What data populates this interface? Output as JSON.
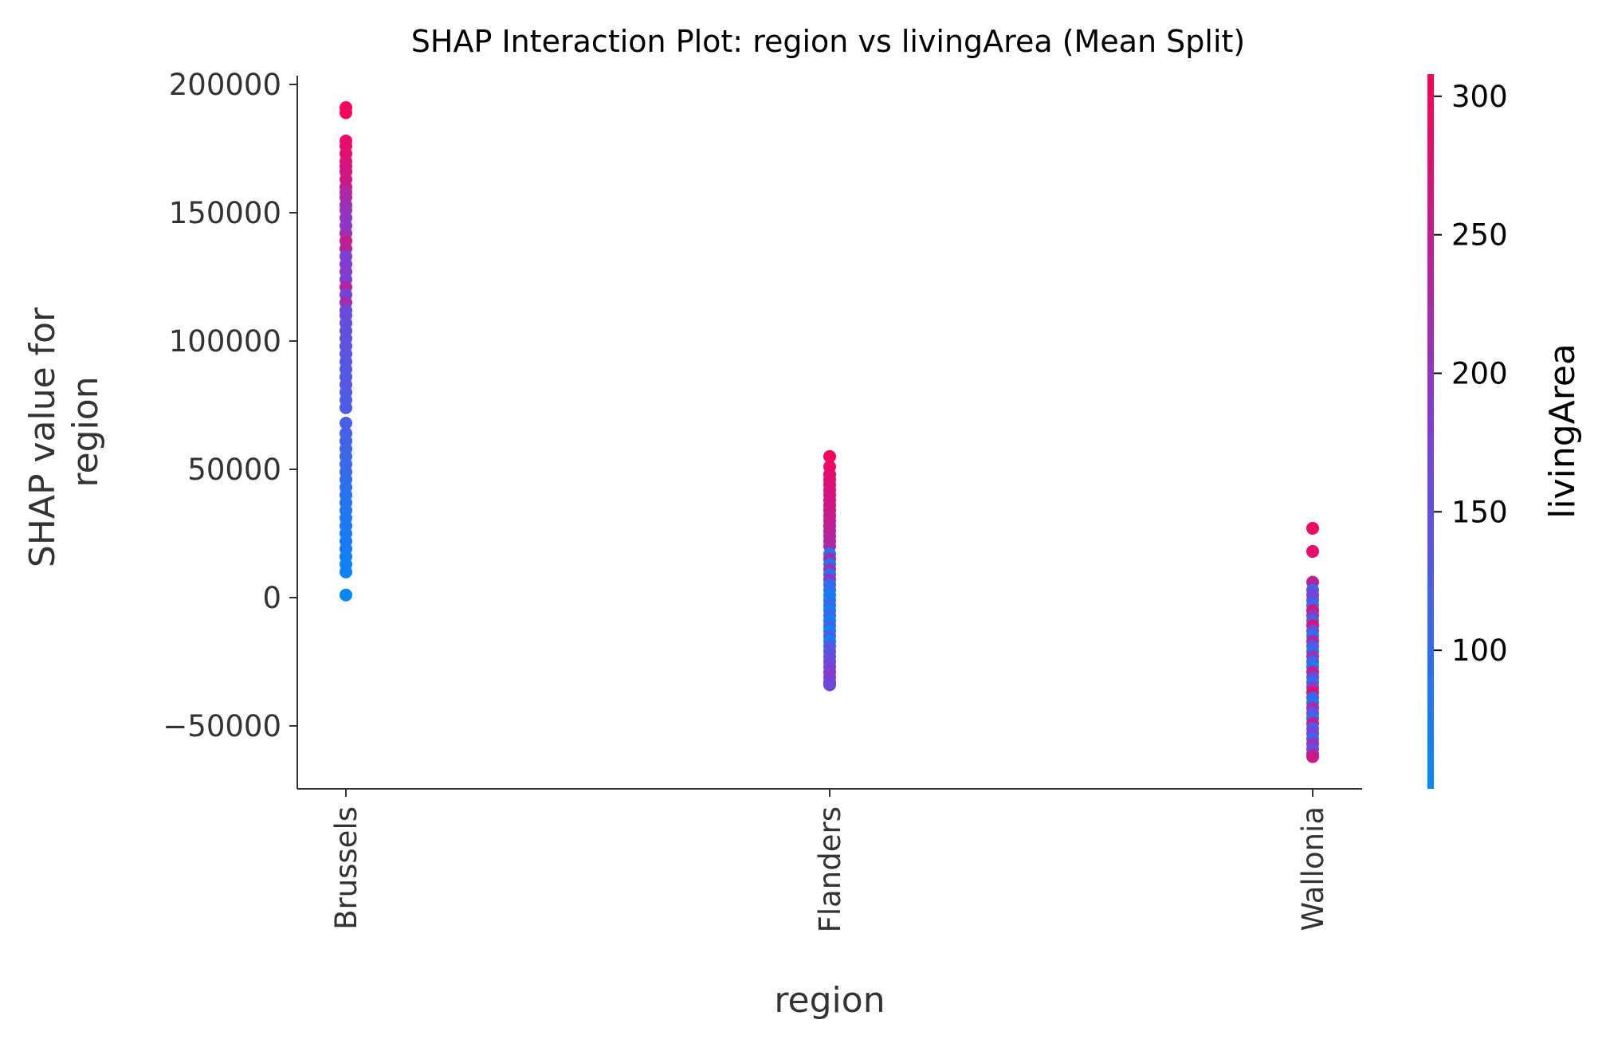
{
  "chart_data": {
    "type": "scatter",
    "title": "SHAP Interaction Plot: region vs livingArea (Mean Split)",
    "xlabel": "region",
    "ylabel": [
      "SHAP value for",
      "region"
    ],
    "categories": [
      "Brussels",
      "Flanders",
      "Wallonia"
    ],
    "y_ticks": [
      200000,
      150000,
      100000,
      50000,
      0,
      -50000
    ],
    "y_tick_labels": [
      "200000",
      "150000",
      "100000",
      "50000",
      "0",
      "−50000"
    ],
    "ylim": [
      -75000,
      205000
    ],
    "colorbar": {
      "label": "livingArea",
      "range": [
        50,
        308
      ],
      "ticks": [
        100,
        150,
        200,
        250,
        300
      ],
      "tick_labels": [
        "100",
        "150",
        "200",
        "250",
        "300"
      ],
      "color_low": "#008afb",
      "color_mid": "#7d3fd8",
      "color_high": "#ff0052"
    },
    "series": [
      {
        "category": "Brussels",
        "points": [
          [
            191000,
            300
          ],
          [
            189000,
            295
          ],
          [
            178000,
            290
          ],
          [
            176000,
            285
          ],
          [
            173000,
            280
          ],
          [
            170000,
            275
          ],
          [
            168000,
            270
          ],
          [
            166000,
            265
          ],
          [
            163000,
            260
          ],
          [
            160000,
            255
          ],
          [
            158000,
            230
          ],
          [
            156000,
            225
          ],
          [
            153000,
            215
          ],
          [
            151000,
            205
          ],
          [
            148000,
            200
          ],
          [
            145000,
            195
          ],
          [
            142000,
            210
          ],
          [
            139000,
            250
          ],
          [
            136000,
            240
          ],
          [
            133000,
            180
          ],
          [
            130000,
            185
          ],
          [
            127000,
            190
          ],
          [
            124000,
            175
          ],
          [
            121000,
            235
          ],
          [
            118000,
            170
          ],
          [
            115000,
            220
          ],
          [
            112000,
            165
          ],
          [
            110000,
            160
          ],
          [
            107000,
            155
          ],
          [
            104000,
            150
          ],
          [
            101000,
            150
          ],
          [
            98000,
            145
          ],
          [
            95000,
            145
          ],
          [
            92000,
            140
          ],
          [
            89000,
            140
          ],
          [
            86000,
            135
          ],
          [
            83000,
            140
          ],
          [
            80000,
            135
          ],
          [
            77000,
            130
          ],
          [
            74000,
            130
          ],
          [
            68000,
            125
          ],
          [
            64000,
            120
          ],
          [
            61000,
            118
          ],
          [
            58000,
            115
          ],
          [
            55000,
            112
          ],
          [
            52000,
            110
          ],
          [
            49000,
            105
          ],
          [
            46000,
            100
          ],
          [
            43000,
            95
          ],
          [
            40000,
            92
          ],
          [
            37000,
            88
          ],
          [
            34000,
            85
          ],
          [
            31000,
            82
          ],
          [
            28000,
            80
          ],
          [
            25000,
            78
          ],
          [
            22000,
            75
          ],
          [
            19000,
            72
          ],
          [
            16000,
            70
          ],
          [
            13000,
            68
          ],
          [
            10000,
            65
          ],
          [
            1000,
            55
          ]
        ]
      },
      {
        "category": "Flanders",
        "points": [
          [
            55000,
            295
          ],
          [
            51000,
            290
          ],
          [
            48000,
            285
          ],
          [
            46000,
            280
          ],
          [
            44000,
            275
          ],
          [
            42000,
            272
          ],
          [
            40000,
            268
          ],
          [
            38000,
            265
          ],
          [
            36000,
            262
          ],
          [
            34000,
            258
          ],
          [
            32000,
            255
          ],
          [
            30000,
            250
          ],
          [
            28000,
            246
          ],
          [
            26000,
            242
          ],
          [
            24000,
            238
          ],
          [
            22000,
            232
          ],
          [
            20000,
            226
          ],
          [
            17000,
            90
          ],
          [
            15000,
            218
          ],
          [
            13000,
            85
          ],
          [
            11000,
            210
          ],
          [
            9000,
            95
          ],
          [
            7000,
            200
          ],
          [
            5000,
            100
          ],
          [
            3000,
            105
          ],
          [
            1000,
            75
          ],
          [
            -1000,
            80
          ],
          [
            -3000,
            110
          ],
          [
            -5000,
            70
          ],
          [
            -7000,
            115
          ],
          [
            -9000,
            65
          ],
          [
            -11000,
            120
          ],
          [
            -13000,
            60
          ],
          [
            -15000,
            125
          ],
          [
            -17000,
            70
          ],
          [
            -19000,
            130
          ],
          [
            -21000,
            140
          ],
          [
            -23000,
            150
          ],
          [
            -25000,
            160
          ],
          [
            -27000,
            170
          ],
          [
            -29000,
            180
          ],
          [
            -31000,
            190
          ],
          [
            -33000,
            175
          ],
          [
            -34000,
            165
          ]
        ]
      },
      {
        "category": "Wallonia",
        "points": [
          [
            27000,
            292
          ],
          [
            18000,
            285
          ],
          [
            6000,
            240
          ],
          [
            3000,
            120
          ],
          [
            1000,
            180
          ],
          [
            -1000,
            150
          ],
          [
            -3000,
            110
          ],
          [
            -5000,
            260
          ],
          [
            -7000,
            200
          ],
          [
            -9000,
            130
          ],
          [
            -11000,
            270
          ],
          [
            -13000,
            160
          ],
          [
            -15000,
            90
          ],
          [
            -17000,
            230
          ],
          [
            -19000,
            140
          ],
          [
            -21000,
            100
          ],
          [
            -23000,
            210
          ],
          [
            -25000,
            120
          ],
          [
            -27000,
            80
          ],
          [
            -29000,
            250
          ],
          [
            -31000,
            170
          ],
          [
            -33000,
            95
          ],
          [
            -35000,
            190
          ],
          [
            -37000,
            280
          ],
          [
            -39000,
            125
          ],
          [
            -41000,
            85
          ],
          [
            -43000,
            220
          ],
          [
            -45000,
            150
          ],
          [
            -47000,
            105
          ],
          [
            -49000,
            245
          ],
          [
            -51000,
            135
          ],
          [
            -53000,
            175
          ],
          [
            -55000,
            115
          ],
          [
            -57000,
            205
          ],
          [
            -59000,
            160
          ],
          [
            -61000,
            185
          ],
          [
            -62000,
            255
          ]
        ]
      }
    ]
  }
}
